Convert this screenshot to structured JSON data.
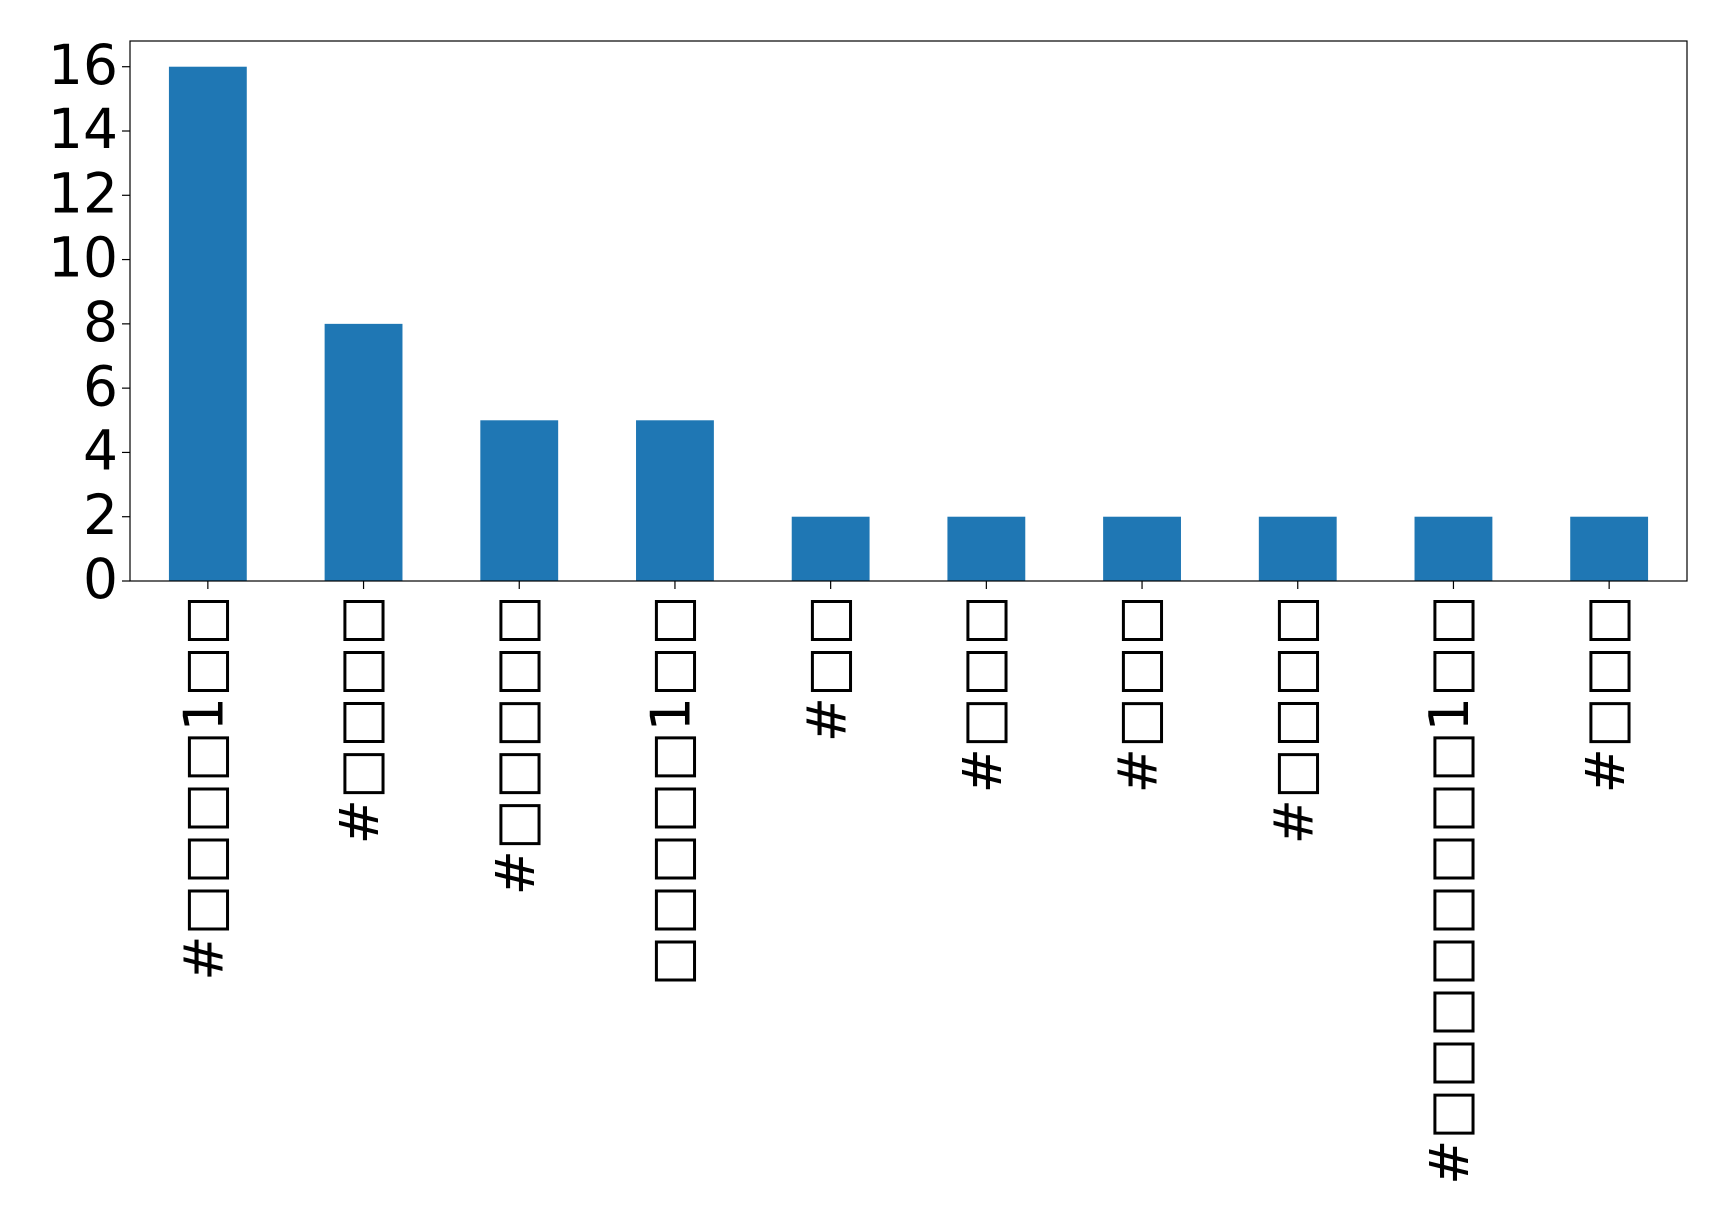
{
  "chart_data": {
    "type": "bar",
    "categories": [
      "#□□□□1□□",
      "#□□□□",
      "#□□□□□",
      "□□□□□1□□",
      "#□□",
      "#□□□",
      "#□□□",
      "#□□□□",
      "#□□□□□□□□1□□",
      "#□□□"
    ],
    "values": [
      16,
      8,
      5,
      5,
      2,
      2,
      2,
      2,
      2,
      2
    ],
    "color": "#1f77b4",
    "ylim": [
      0,
      16.8
    ],
    "yticks": [
      0,
      2,
      4,
      6,
      8,
      10,
      12,
      14,
      16
    ],
    "grid": false
  }
}
